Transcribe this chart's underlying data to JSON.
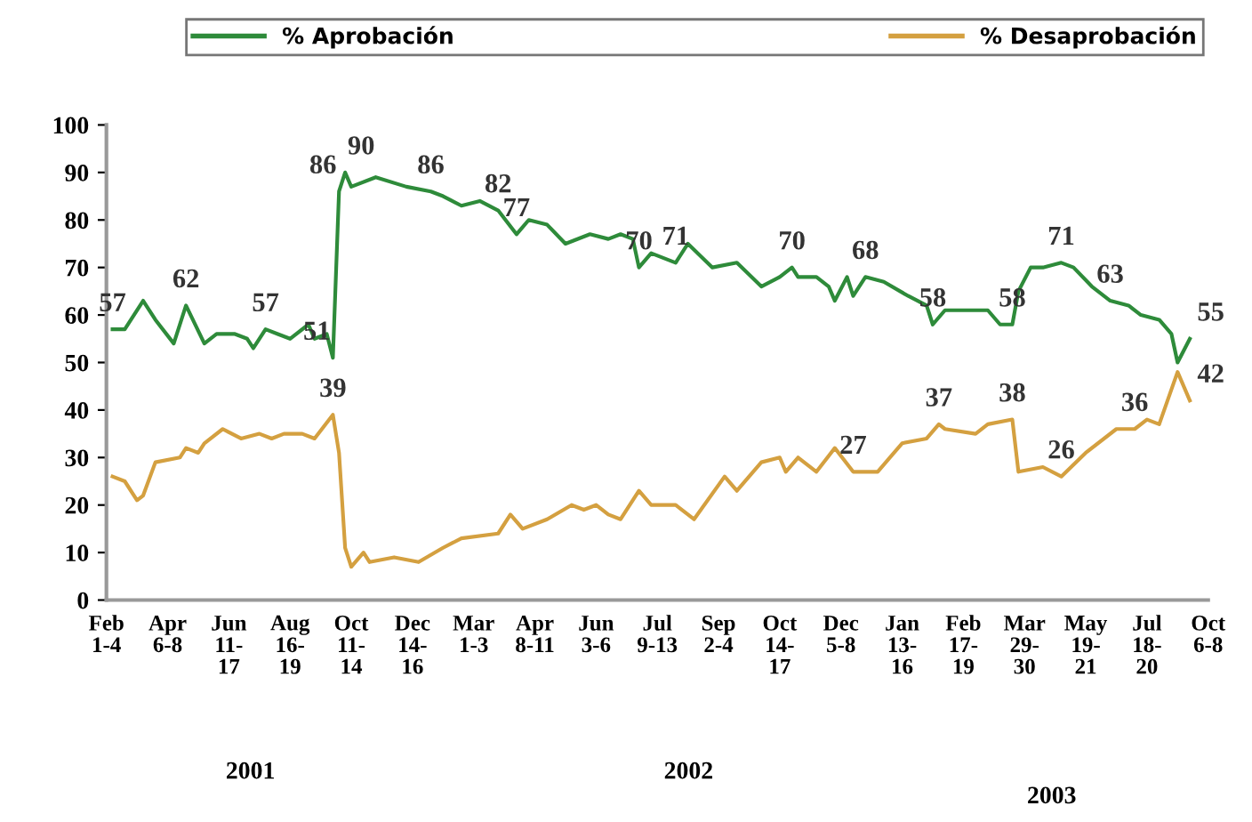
{
  "chart_data": {
    "type": "line",
    "legend": "top",
    "grid": false,
    "marker": "none",
    "line_style": "solid",
    "ylim": [
      0,
      100
    ],
    "yticks": [
      0,
      10,
      20,
      30,
      40,
      50,
      60,
      70,
      80,
      90,
      100
    ],
    "categories": [
      "Feb\n1-4",
      null,
      null,
      null,
      null,
      null,
      null,
      null,
      null,
      null,
      "Apr\n6-8",
      null,
      null,
      null,
      null,
      null,
      null,
      null,
      null,
      null,
      "Jun\n11-\n17",
      null,
      null,
      null,
      null,
      null,
      null,
      null,
      null,
      null,
      "Aug\n16-\n19",
      null,
      null,
      null,
      null,
      null,
      null,
      null,
      null,
      null,
      "Oct\n11-\n14",
      null,
      null,
      null,
      null,
      null,
      null,
      null,
      null,
      null,
      "Dec\n14-\n16",
      null,
      null,
      null,
      null,
      null,
      null,
      null,
      null,
      null,
      "Mar\n1-3",
      null,
      null,
      null,
      null,
      null,
      null,
      null,
      null,
      null,
      "Apr\n8-11",
      null,
      null,
      null,
      null,
      null,
      null,
      null,
      null,
      null,
      "Jun\n3-6",
      null,
      null,
      null,
      null,
      null,
      null,
      null,
      null,
      null,
      "Jul\n9-13",
      null,
      null,
      null,
      null,
      null,
      null,
      null,
      null,
      null,
      "Sep\n2-4",
      null,
      null,
      null,
      null,
      null,
      null,
      null,
      null,
      null,
      "Oct\n14-\n17",
      null,
      null,
      null,
      null,
      null,
      null,
      null,
      null,
      null,
      "Dec\n5-8",
      null,
      null,
      null,
      null,
      null,
      null,
      null,
      null,
      null,
      "Jan\n13-\n16",
      null,
      null,
      null,
      null,
      null,
      null,
      null,
      null,
      null,
      "Feb\n17-\n19",
      null,
      null,
      null,
      null,
      null,
      null,
      null,
      null,
      null,
      "Mar\n29-\n30",
      null,
      null,
      null,
      null,
      null,
      null,
      null,
      null,
      null,
      "May\n19-\n21",
      null,
      null,
      null,
      null,
      null,
      null,
      null,
      null,
      null,
      "Jul\n18-\n20",
      null,
      null,
      null,
      null,
      null,
      null,
      null,
      null,
      null,
      "Oct\n6-8"
    ],
    "series": [
      {
        "name": "% Aprobación",
        "color": "#2e8b3a",
        "values": [
          null,
          57,
          null,
          57,
          null,
          null,
          63,
          null,
          59,
          null,
          null,
          54,
          null,
          62,
          null,
          null,
          54,
          null,
          56,
          null,
          null,
          56,
          null,
          55,
          53,
          null,
          57,
          null,
          56,
          null,
          55,
          null,
          null,
          58,
          55,
          null,
          56,
          51,
          86,
          90,
          87,
          null,
          null,
          null,
          89,
          null,
          null,
          null,
          null,
          87,
          null,
          null,
          null,
          86,
          null,
          85,
          null,
          null,
          83,
          null,
          null,
          84,
          null,
          null,
          82,
          null,
          null,
          77,
          null,
          80,
          null,
          null,
          79,
          null,
          null,
          75,
          null,
          null,
          null,
          77,
          null,
          null,
          76,
          null,
          77,
          null,
          76,
          70,
          null,
          73,
          null,
          null,
          null,
          71,
          null,
          75,
          null,
          null,
          null,
          70,
          null,
          null,
          null,
          71,
          null,
          null,
          null,
          66,
          null,
          null,
          68,
          null,
          70,
          68,
          null,
          null,
          68,
          null,
          66,
          63,
          null,
          68,
          64,
          null,
          68,
          null,
          null,
          67,
          null,
          null,
          null,
          64,
          null,
          null,
          62,
          58,
          null,
          61,
          null,
          61,
          null,
          null,
          null,
          null,
          61,
          null,
          58,
          null,
          58,
          65,
          null,
          70,
          null,
          70,
          null,
          null,
          71,
          null,
          70,
          null,
          null,
          66,
          null,
          null,
          63,
          null,
          null,
          62,
          null,
          60,
          null,
          null,
          59,
          null,
          56,
          50,
          null,
          55,
          null,
          null,
          null
        ],
        "value_labels": [
          null,
          "57",
          null,
          null,
          null,
          null,
          null,
          null,
          null,
          null,
          null,
          null,
          null,
          "62",
          null,
          null,
          null,
          null,
          null,
          null,
          null,
          null,
          null,
          null,
          null,
          null,
          "57",
          null,
          null,
          null,
          null,
          null,
          null,
          null,
          null,
          null,
          null,
          "51",
          "86",
          "90",
          null,
          null,
          null,
          null,
          null,
          null,
          null,
          null,
          null,
          null,
          null,
          null,
          null,
          "86",
          null,
          null,
          null,
          null,
          null,
          null,
          null,
          null,
          null,
          null,
          "82",
          null,
          null,
          "77",
          null,
          null,
          null,
          null,
          null,
          null,
          null,
          null,
          null,
          null,
          null,
          null,
          null,
          null,
          null,
          null,
          null,
          null,
          null,
          "70",
          null,
          null,
          null,
          null,
          null,
          "71",
          null,
          null,
          null,
          null,
          null,
          null,
          null,
          null,
          null,
          null,
          null,
          null,
          null,
          null,
          null,
          null,
          null,
          null,
          "70",
          null,
          null,
          null,
          null,
          null,
          null,
          null,
          null,
          null,
          null,
          null,
          "68",
          null,
          null,
          null,
          null,
          null,
          null,
          null,
          null,
          null,
          null,
          "58",
          null,
          null,
          null,
          null,
          null,
          null,
          null,
          null,
          null,
          null,
          null,
          null,
          "58",
          null,
          null,
          null,
          null,
          null,
          null,
          null,
          "71",
          null,
          null,
          null,
          null,
          null,
          null,
          null,
          "63",
          null,
          null,
          null,
          null,
          null,
          null,
          null,
          null,
          null,
          null,
          null,
          null,
          "55",
          null,
          null,
          null
        ]
      },
      {
        "name": "% Desaprobación",
        "color": "#d4a040",
        "values": [
          null,
          26,
          null,
          25,
          null,
          21,
          22,
          null,
          29,
          null,
          null,
          null,
          30,
          32,
          null,
          31,
          33,
          null,
          null,
          36,
          null,
          null,
          34,
          null,
          null,
          35,
          null,
          34,
          null,
          35,
          null,
          null,
          35,
          null,
          34,
          null,
          null,
          39,
          31,
          11,
          7,
          null,
          10,
          8,
          null,
          null,
          null,
          9,
          null,
          null,
          null,
          8,
          null,
          null,
          null,
          11,
          null,
          null,
          13,
          null,
          null,
          null,
          null,
          null,
          14,
          null,
          18,
          null,
          15,
          null,
          null,
          null,
          17,
          null,
          null,
          null,
          20,
          null,
          19,
          null,
          20,
          null,
          18,
          null,
          17,
          null,
          null,
          23,
          null,
          20,
          null,
          null,
          null,
          20,
          null,
          null,
          17,
          null,
          null,
          null,
          null,
          26,
          null,
          23,
          null,
          null,
          null,
          29,
          null,
          null,
          30,
          27,
          null,
          30,
          null,
          null,
          27,
          null,
          null,
          32,
          null,
          null,
          27,
          null,
          null,
          null,
          27,
          null,
          null,
          null,
          33,
          null,
          null,
          null,
          34,
          null,
          37,
          36,
          null,
          null,
          null,
          null,
          35,
          null,
          37,
          null,
          null,
          null,
          38,
          27,
          null,
          null,
          null,
          28,
          null,
          null,
          26,
          null,
          null,
          null,
          31,
          null,
          null,
          null,
          null,
          36,
          null,
          null,
          36,
          null,
          38,
          null,
          37,
          null,
          null,
          48,
          null,
          42,
          null,
          null,
          null
        ],
        "value_labels": [
          null,
          null,
          null,
          null,
          null,
          null,
          null,
          null,
          null,
          null,
          null,
          null,
          null,
          null,
          null,
          null,
          null,
          null,
          null,
          null,
          null,
          null,
          null,
          null,
          null,
          null,
          null,
          null,
          null,
          null,
          null,
          null,
          null,
          null,
          null,
          null,
          null,
          "39",
          null,
          null,
          null,
          null,
          null,
          null,
          null,
          null,
          null,
          null,
          null,
          null,
          null,
          null,
          null,
          null,
          null,
          null,
          null,
          null,
          null,
          null,
          null,
          null,
          null,
          null,
          null,
          null,
          null,
          null,
          null,
          null,
          null,
          null,
          null,
          null,
          null,
          null,
          null,
          null,
          null,
          null,
          null,
          null,
          null,
          null,
          null,
          null,
          null,
          null,
          null,
          null,
          null,
          null,
          null,
          null,
          null,
          null,
          null,
          null,
          null,
          null,
          null,
          null,
          null,
          null,
          null,
          null,
          null,
          null,
          null,
          null,
          null,
          null,
          null,
          null,
          null,
          null,
          null,
          null,
          null,
          null,
          null,
          null,
          "27",
          null,
          null,
          null,
          null,
          null,
          null,
          null,
          null,
          null,
          null,
          null,
          null,
          null,
          "37",
          null,
          null,
          null,
          null,
          null,
          null,
          null,
          null,
          null,
          null,
          null,
          "38",
          null,
          null,
          null,
          null,
          null,
          null,
          null,
          "26",
          null,
          null,
          null,
          null,
          null,
          null,
          null,
          null,
          null,
          null,
          null,
          "36",
          null,
          null,
          null,
          null,
          null,
          null,
          null,
          null,
          "42",
          null,
          null,
          null
        ]
      }
    ],
    "annotations": [
      "2001",
      "2002",
      "2003"
    ]
  }
}
